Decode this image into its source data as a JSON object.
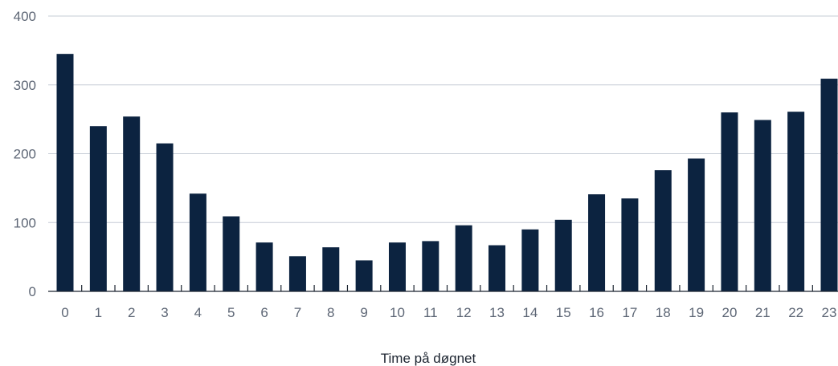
{
  "colors": {
    "bar": "#0c2340",
    "grid": "#c5ccd6",
    "axis": "#1c2430",
    "tick_text": "#5d6675"
  },
  "chart_data": {
    "type": "bar",
    "title": "",
    "xlabel": "Time på døgnet",
    "ylabel": "",
    "ylim": [
      0,
      400
    ],
    "yticks": [
      0,
      100,
      200,
      300,
      400
    ],
    "grid": true,
    "categories": [
      "0",
      "1",
      "2",
      "3",
      "4",
      "5",
      "6",
      "7",
      "8",
      "9",
      "10",
      "11",
      "12",
      "13",
      "14",
      "15",
      "16",
      "17",
      "18",
      "19",
      "20",
      "21",
      "22",
      "23"
    ],
    "values": [
      345,
      240,
      254,
      215,
      142,
      109,
      71,
      51,
      64,
      45,
      71,
      73,
      96,
      67,
      90,
      104,
      141,
      135,
      176,
      193,
      260,
      249,
      261,
      309
    ]
  }
}
